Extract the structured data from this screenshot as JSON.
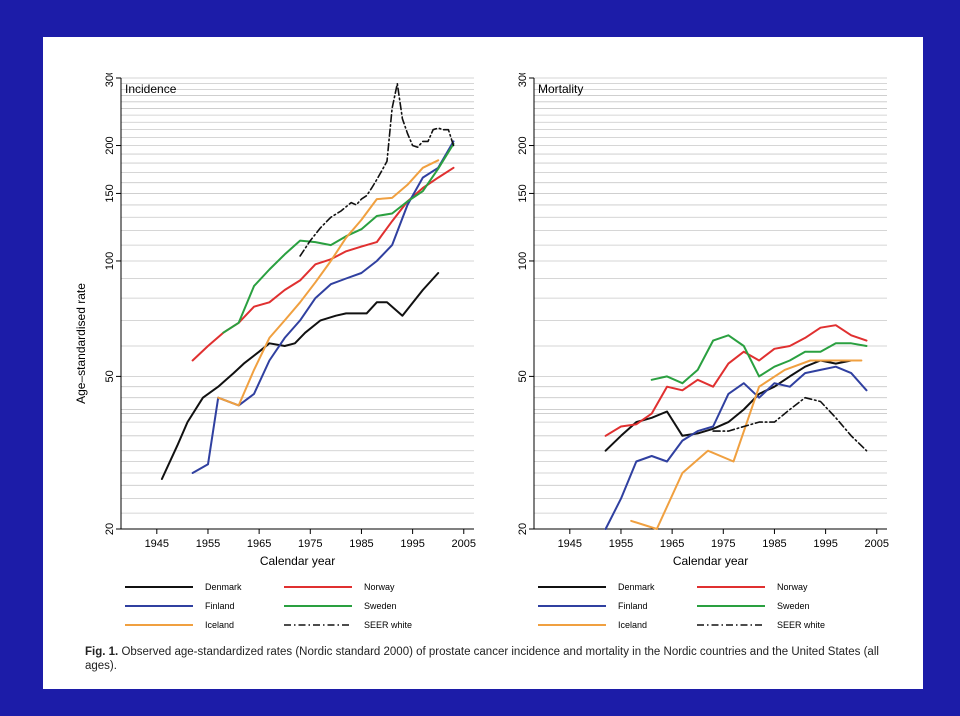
{
  "caption": {
    "label": "Fig. 1.",
    "text": "Observed age-standardized rates (Nordic standard 2000) of prostate cancer incidence and mortality in the Nordic countries and the United States (all ages)."
  },
  "chart_data": [
    {
      "type": "line",
      "title": "Incidence",
      "xlabel": "Calendar year",
      "ylabel": "Age–standardised rate",
      "xlim": [
        1938,
        2007
      ],
      "ylim": [
        20,
        300
      ],
      "y_scale": "log",
      "x_ticks": [
        "1945",
        "1955",
        "1965",
        "1975",
        "1985",
        "1995",
        "2005"
      ],
      "y_ticks": [
        "20",
        "50",
        "100",
        "150",
        "200",
        "300"
      ],
      "grid": "horizontal",
      "legend": "bottom",
      "series": [
        {
          "name": "Denmark",
          "color": "#111111",
          "dash": "solid",
          "x": [
            1946,
            1949,
            1951,
            1954,
            1957,
            1960,
            1962,
            1965,
            1967,
            1970,
            1972,
            1974,
            1977,
            1980,
            1982,
            1986,
            1988,
            1990,
            1993,
            1997,
            2000
          ],
          "y": [
            27,
            33,
            38,
            44,
            47,
            51,
            54,
            58,
            61,
            60,
            61,
            65,
            70,
            72,
            73,
            73,
            78,
            78,
            72,
            84,
            93
          ]
        },
        {
          "name": "Norway",
          "color": "#e03030",
          "dash": "solid",
          "x": [
            1952,
            1955,
            1958,
            1961,
            1964,
            1967,
            1970,
            1973,
            1976,
            1979,
            1982,
            1985,
            1988,
            1991,
            1994,
            1997,
            2000,
            2003
          ],
          "y": [
            55,
            60,
            65,
            69,
            76,
            78,
            84,
            89,
            98,
            101,
            106,
            109,
            112,
            127,
            143,
            155,
            165,
            175
          ]
        },
        {
          "name": "Finland",
          "color": "#3040a0",
          "dash": "solid",
          "x": [
            1952,
            1955,
            1957,
            1961,
            1964,
            1967,
            1970,
            1973,
            1976,
            1979,
            1982,
            1985,
            1988,
            1991,
            1994,
            1997,
            2000,
            2003
          ],
          "y": [
            28,
            29.5,
            44,
            42,
            45,
            55,
            63,
            70,
            80,
            87,
            90,
            93,
            100,
            110,
            140,
            165,
            175,
            205
          ]
        },
        {
          "name": "Sweden",
          "color": "#2aa040",
          "dash": "solid",
          "x": [
            1958,
            1961,
            1964,
            1967,
            1970,
            1973,
            1976,
            1979,
            1982,
            1985,
            1988,
            1991,
            1994,
            1997,
            2000,
            2003
          ],
          "y": [
            65,
            69,
            86,
            95,
            104,
            113,
            112,
            110,
            116,
            121,
            131,
            133,
            143,
            152,
            174,
            202
          ]
        },
        {
          "name": "Iceland",
          "color": "#f0a040",
          "dash": "solid",
          "x": [
            1957,
            1961,
            1964,
            1967,
            1970,
            1973,
            1976,
            1979,
            1982,
            1985,
            1988,
            1991,
            1994,
            1997,
            2000
          ],
          "y": [
            44,
            42,
            52,
            63,
            70,
            78,
            88,
            100,
            115,
            128,
            145,
            146,
            158,
            175,
            183
          ]
        },
        {
          "name": "SEER white",
          "color": "#111111",
          "dash": "dashdot",
          "x": [
            1973,
            1975,
            1977,
            1979,
            1981,
            1983,
            1984,
            1985,
            1986,
            1987,
            1988,
            1989,
            1990,
            1991,
            1992,
            1993,
            1994,
            1995,
            1996,
            1997,
            1998,
            1999,
            2000,
            2001,
            2002,
            2003
          ],
          "y": [
            103,
            113,
            122,
            130,
            135,
            142,
            140,
            145,
            148,
            155,
            163,
            172,
            182,
            250,
            290,
            235,
            215,
            200,
            198,
            205,
            205,
            220,
            222,
            220,
            220,
            200
          ]
        }
      ]
    },
    {
      "type": "line",
      "title": "Mortality",
      "xlabel": "Calendar year",
      "ylabel": "",
      "xlim": [
        1938,
        2007
      ],
      "ylim": [
        20,
        300
      ],
      "y_scale": "log",
      "x_ticks": [
        "1945",
        "1955",
        "1965",
        "1975",
        "1985",
        "1995",
        "2005"
      ],
      "y_ticks": [
        "20",
        "50",
        "100",
        "150",
        "200",
        "300"
      ],
      "grid": "horizontal",
      "legend": "bottom",
      "series": [
        {
          "name": "Denmark",
          "color": "#111111",
          "dash": "solid",
          "x": [
            1952,
            1955,
            1958,
            1961,
            1964,
            1967,
            1970,
            1973,
            1976,
            1979,
            1982,
            1985,
            1988,
            1991,
            1994,
            1997,
            2000
          ],
          "y": [
            32,
            35,
            38,
            39,
            40.5,
            35,
            35.5,
            36.5,
            38,
            41,
            45,
            47,
            50,
            53,
            55,
            54,
            55
          ]
        },
        {
          "name": "Norway",
          "color": "#e03030",
          "dash": "solid",
          "x": [
            1952,
            1955,
            1958,
            1961,
            1964,
            1967,
            1970,
            1973,
            1976,
            1979,
            1982,
            1985,
            1988,
            1991,
            1994,
            1997,
            2000,
            2003
          ],
          "y": [
            35,
            37,
            37.5,
            40,
            47,
            46,
            49,
            47,
            54,
            58,
            55,
            59,
            60,
            63,
            67,
            68,
            64,
            62
          ]
        },
        {
          "name": "Finland",
          "color": "#3040a0",
          "dash": "solid",
          "x": [
            1952,
            1955,
            1958,
            1961,
            1964,
            1967,
            1970,
            1973,
            1976,
            1979,
            1982,
            1985,
            1988,
            1991,
            1994,
            1997,
            2000,
            2003
          ],
          "y": [
            20,
            24,
            30,
            31,
            30,
            34,
            36,
            37,
            45,
            48,
            44,
            48,
            47,
            51,
            52,
            53,
            51,
            46
          ]
        },
        {
          "name": "Sweden",
          "color": "#2aa040",
          "dash": "solid",
          "x": [
            1961,
            1964,
            1967,
            1970,
            1973,
            1976,
            1979,
            1982,
            1985,
            1988,
            1991,
            1994,
            1997,
            2000,
            2003
          ],
          "y": [
            49,
            50,
            48,
            52,
            62,
            64,
            60,
            50,
            53,
            55,
            58,
            58,
            61,
            61,
            60
          ]
        },
        {
          "name": "Iceland",
          "color": "#f0a040",
          "dash": "solid",
          "x": [
            1957,
            1962,
            1967,
            1972,
            1977,
            1982,
            1987,
            1992,
            1997,
            2002
          ],
          "y": [
            21,
            20,
            28,
            32,
            30,
            47,
            52,
            55,
            55,
            55
          ]
        },
        {
          "name": "SEER white",
          "color": "#111111",
          "dash": "dashdot",
          "x": [
            1973,
            1976,
            1979,
            1982,
            1985,
            1988,
            1991,
            1994,
            1997,
            2000,
            2003
          ],
          "y": [
            36,
            36,
            37,
            38,
            38,
            41,
            44,
            43,
            39,
            35,
            32
          ]
        }
      ]
    }
  ]
}
